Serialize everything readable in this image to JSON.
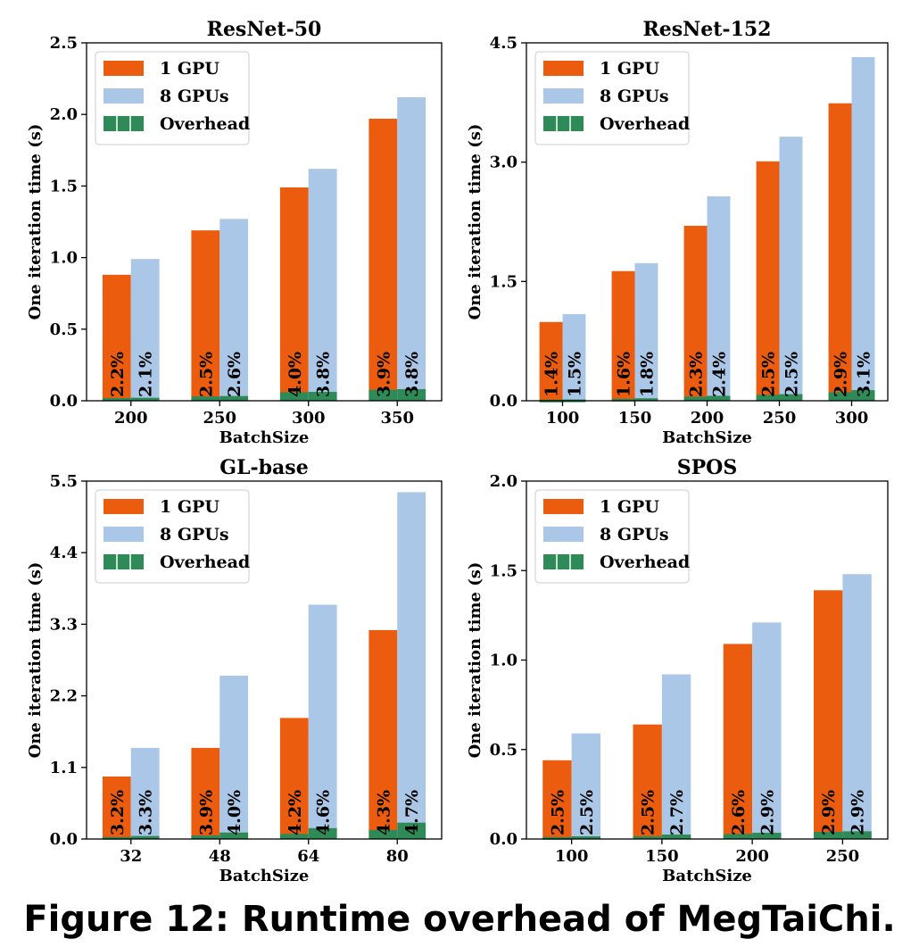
{
  "caption": "Figure 12: Runtime overhead of MegTaiChi.",
  "colors": {
    "gpu1": "#EC5C0F",
    "gpu8": "#ABC7E7",
    "overhead": "#2E8B57"
  },
  "legend_labels": [
    "1 GPU",
    "8 GPUs",
    "Overhead"
  ],
  "chart_data": [
    {
      "type": "bar",
      "title": "ResNet-50",
      "xlabel": "BatchSize",
      "ylabel": "One iteration time (s)",
      "categories": [
        "200",
        "250",
        "300",
        "350"
      ],
      "ylim": [
        0,
        2.5
      ],
      "yticks": [
        "0.0",
        "0.5",
        "1.0",
        "1.5",
        "2.0",
        "2.5"
      ],
      "series": [
        {
          "name": "1 GPU",
          "values": [
            0.88,
            1.19,
            1.49,
            1.97
          ],
          "overhead": [
            0.019,
            0.03,
            0.06,
            0.077
          ],
          "labels": [
            "2.2%",
            "2.5%",
            "4.0%",
            "3.9%"
          ]
        },
        {
          "name": "8 GPUs",
          "values": [
            0.99,
            1.27,
            1.62,
            2.12
          ],
          "overhead": [
            0.021,
            0.033,
            0.062,
            0.081
          ],
          "labels": [
            "2.1%",
            "2.6%",
            "3.8%",
            "3.8%"
          ]
        }
      ],
      "legend": "top-left"
    },
    {
      "type": "bar",
      "title": "ResNet-152",
      "xlabel": "BatchSize",
      "ylabel": "One iteration time (s)",
      "categories": [
        "100",
        "150",
        "200",
        "250",
        "300"
      ],
      "ylim": [
        0,
        4.5
      ],
      "yticks": [
        "0.0",
        "1.5",
        "3.0",
        "4.5"
      ],
      "series": [
        {
          "name": "1 GPU",
          "values": [
            0.99,
            1.63,
            2.2,
            3.01,
            3.74
          ],
          "overhead": [
            0.014,
            0.026,
            0.051,
            0.075,
            0.108
          ],
          "labels": [
            "1.4%",
            "1.6%",
            "2.3%",
            "2.5%",
            "2.9%"
          ]
        },
        {
          "name": "8 GPUs",
          "values": [
            1.09,
            1.73,
            2.57,
            3.32,
            4.32
          ],
          "overhead": [
            0.016,
            0.031,
            0.062,
            0.083,
            0.134
          ],
          "labels": [
            "1.5%",
            "1.8%",
            "2.4%",
            "2.5%",
            "3.1%"
          ]
        }
      ],
      "legend": "top-left"
    },
    {
      "type": "bar",
      "title": "GL-base",
      "xlabel": "BatchSize",
      "ylabel": "One iteration time (s)",
      "categories": [
        "32",
        "48",
        "64",
        "80"
      ],
      "ylim": [
        0,
        5.5
      ],
      "yticks": [
        "0.0",
        "1.1",
        "2.2",
        "3.3",
        "4.4",
        "5.5"
      ],
      "series": [
        {
          "name": "1 GPU",
          "values": [
            0.96,
            1.4,
            1.86,
            3.21
          ],
          "overhead": [
            0.031,
            0.055,
            0.078,
            0.138
          ],
          "labels": [
            "3.2%",
            "3.9%",
            "4.2%",
            "4.3%"
          ]
        },
        {
          "name": "8 GPUs",
          "values": [
            1.4,
            2.51,
            3.6,
            5.33
          ],
          "overhead": [
            0.046,
            0.1,
            0.166,
            0.251
          ],
          "labels": [
            "3.3%",
            "4.0%",
            "4.6%",
            "4.7%"
          ]
        }
      ],
      "legend": "top-left"
    },
    {
      "type": "bar",
      "title": "SPOS",
      "xlabel": "BatchSize",
      "ylabel": "One iteration time (s)",
      "categories": [
        "100",
        "150",
        "200",
        "250"
      ],
      "ylim": [
        0,
        2.0
      ],
      "yticks": [
        "0.0",
        "0.5",
        "1.0",
        "1.5",
        "2.0"
      ],
      "series": [
        {
          "name": "1 GPU",
          "values": [
            0.44,
            0.64,
            1.09,
            1.39
          ],
          "overhead": [
            0.011,
            0.016,
            0.028,
            0.04
          ],
          "labels": [
            "2.5%",
            "2.5%",
            "2.6%",
            "2.9%"
          ]
        },
        {
          "name": "8 GPUs",
          "values": [
            0.59,
            0.92,
            1.21,
            1.48
          ],
          "overhead": [
            0.015,
            0.025,
            0.035,
            0.043
          ],
          "labels": [
            "2.5%",
            "2.7%",
            "2.9%",
            "2.9%"
          ]
        }
      ],
      "legend": "top-left"
    }
  ]
}
